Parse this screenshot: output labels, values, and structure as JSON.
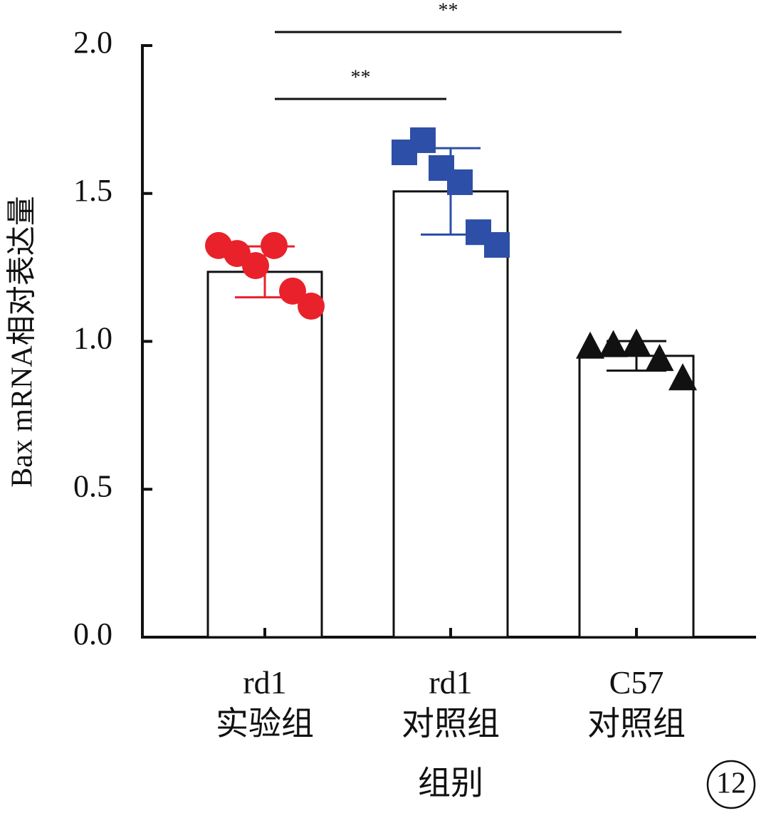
{
  "chart_data": {
    "type": "bar",
    "ylabel": "Bax mRNA相对表达量",
    "xlabel": "组别",
    "categories": [
      "rd1\n实验组",
      "rd1\n对照组",
      "C57\n对照组"
    ],
    "values": [
      1.235,
      1.507,
      0.951
    ],
    "errors": [
      0.086,
      0.146,
      0.05
    ],
    "colors": [
      "#e8212b",
      "#2e4fa8",
      "#111111"
    ],
    "markers": [
      "circle",
      "square",
      "triangle"
    ],
    "points": [
      [
        1.324,
        1.297,
        1.256,
        1.324,
        1.17,
        1.119
      ],
      [
        1.639,
        1.68,
        1.586,
        1.538,
        1.369,
        1.326
      ],
      [
        0.985,
        0.99,
        0.995,
        0.943,
        0.878
      ]
    ],
    "ylim": [
      0,
      2
    ],
    "yticks": [
      {
        "value": 0,
        "label": "0.0"
      },
      0.5,
      {
        "value": 1,
        "label": "1.0"
      },
      1.5,
      {
        "value": 2,
        "label": "2.0"
      }
    ],
    "annotations": [
      "**",
      "**"
    ],
    "panel_label": "12"
  }
}
